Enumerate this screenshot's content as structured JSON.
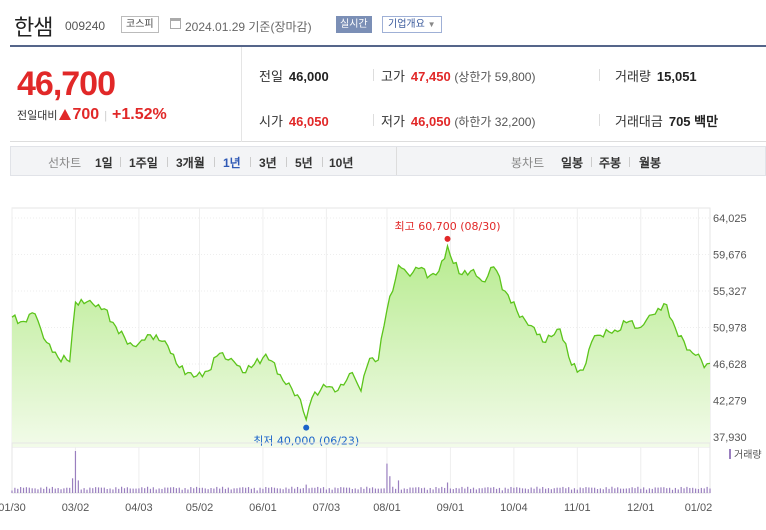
{
  "header": {
    "stock_name": "한샘",
    "stock_code": "009240",
    "market": "코스피",
    "as_of": "2024.01.29 기준(장마감)",
    "realtime_label": "실시간",
    "company_info_label": "기업개요"
  },
  "summary": {
    "price": "46,700",
    "change_label": "전일대비",
    "change_value": "700",
    "change_pct": "+1.52%",
    "prev_close": {
      "label": "전일",
      "value": "46,000"
    },
    "high": {
      "label": "고가",
      "value": "47,450",
      "limit_label": "(상한가",
      "limit_value": "59,800",
      "limit_close": ")"
    },
    "volume": {
      "label": "거래량",
      "value": "15,051"
    },
    "open": {
      "label": "시가",
      "value": "46,050"
    },
    "low": {
      "label": "저가",
      "value": "46,050",
      "limit_label": "(하한가",
      "limit_value": "32,200",
      "limit_close": ")"
    },
    "trade_value": {
      "label": "거래대금",
      "value": "705",
      "unit": "백만"
    },
    "up_color": "#e12828"
  },
  "toolbar": {
    "line_chart_label": "선차트",
    "periods": [
      "1일",
      "1주일",
      "3개월",
      "1년",
      "3년",
      "5년",
      "10년"
    ],
    "selected_period": "1년",
    "candle_chart_label": "봉차트",
    "candle_periods": [
      "일봉",
      "주봉",
      "월봉"
    ]
  },
  "chart_data": {
    "type": "area",
    "title": "",
    "xlabel": "",
    "ylabel": "",
    "ylim": [
      37930,
      64025
    ],
    "y_ticks": [
      "64,025",
      "59,676",
      "55,327",
      "50,978",
      "46,628",
      "42,279",
      "37,930"
    ],
    "x_ticks": [
      "01/30",
      "03/02",
      "04/03",
      "05/02",
      "06/01",
      "07/03",
      "08/01",
      "09/01",
      "10/04",
      "11/01",
      "12/01",
      "01/02"
    ],
    "x_tick_pos": [
      0,
      22,
      44,
      65,
      87,
      109,
      130,
      152,
      174,
      196,
      218,
      238
    ],
    "n_points": 243,
    "high_marker": {
      "label": "최고 60,700 (08/30)",
      "value": 60700,
      "index": 151
    },
    "low_marker": {
      "label": "최저 40,000 (06/23)",
      "value": 40000,
      "index": 102
    },
    "price_anchors": [
      [
        0,
        52200
      ],
      [
        4,
        51700
      ],
      [
        8,
        52600
      ],
      [
        12,
        49200
      ],
      [
        16,
        47400
      ],
      [
        20,
        46900
      ],
      [
        22,
        54000
      ],
      [
        28,
        53800
      ],
      [
        32,
        53200
      ],
      [
        36,
        51100
      ],
      [
        40,
        49000
      ],
      [
        44,
        49100
      ],
      [
        48,
        50100
      ],
      [
        54,
        48800
      ],
      [
        58,
        46200
      ],
      [
        64,
        45200
      ],
      [
        68,
        45800
      ],
      [
        72,
        47900
      ],
      [
        76,
        47300
      ],
      [
        80,
        45600
      ],
      [
        84,
        46600
      ],
      [
        88,
        47800
      ],
      [
        90,
        47000
      ],
      [
        95,
        44200
      ],
      [
        100,
        42400
      ],
      [
        102,
        40300
      ],
      [
        104,
        42600
      ],
      [
        108,
        44200
      ],
      [
        112,
        43300
      ],
      [
        116,
        44700
      ],
      [
        118,
        45600
      ],
      [
        121,
        43400
      ],
      [
        124,
        47300
      ],
      [
        127,
        47100
      ],
      [
        130,
        53100
      ],
      [
        134,
        58400
      ],
      [
        137,
        57500
      ],
      [
        141,
        58000
      ],
      [
        145,
        57200
      ],
      [
        148,
        57700
      ],
      [
        151,
        60500
      ],
      [
        155,
        57400
      ],
      [
        159,
        57700
      ],
      [
        163,
        56500
      ],
      [
        167,
        58200
      ],
      [
        171,
        55300
      ],
      [
        175,
        53000
      ],
      [
        180,
        51200
      ],
      [
        185,
        49200
      ],
      [
        190,
        50800
      ],
      [
        194,
        46500
      ],
      [
        198,
        45900
      ],
      [
        202,
        50000
      ],
      [
        208,
        50300
      ],
      [
        214,
        51700
      ],
      [
        218,
        51000
      ],
      [
        222,
        52500
      ],
      [
        227,
        53700
      ],
      [
        231,
        49900
      ],
      [
        235,
        48300
      ],
      [
        238,
        47800
      ],
      [
        240,
        46200
      ],
      [
        242,
        46700
      ]
    ],
    "volume_label": "거래량",
    "volume_spikes": [
      [
        22,
        1.0
      ],
      [
        21,
        0.35
      ],
      [
        23,
        0.3
      ],
      [
        130,
        0.7
      ],
      [
        131,
        0.4
      ],
      [
        134,
        0.3
      ],
      [
        151,
        0.25
      ],
      [
        102,
        0.2
      ]
    ],
    "line_color": "#5cc41b",
    "fill_top_color": "#b7eb8f",
    "fill_bottom_color": "#f2fbe9",
    "high_color": "#e12828",
    "low_color": "#1a63c9",
    "volume_color": "#9a7fbf",
    "grid": true
  }
}
